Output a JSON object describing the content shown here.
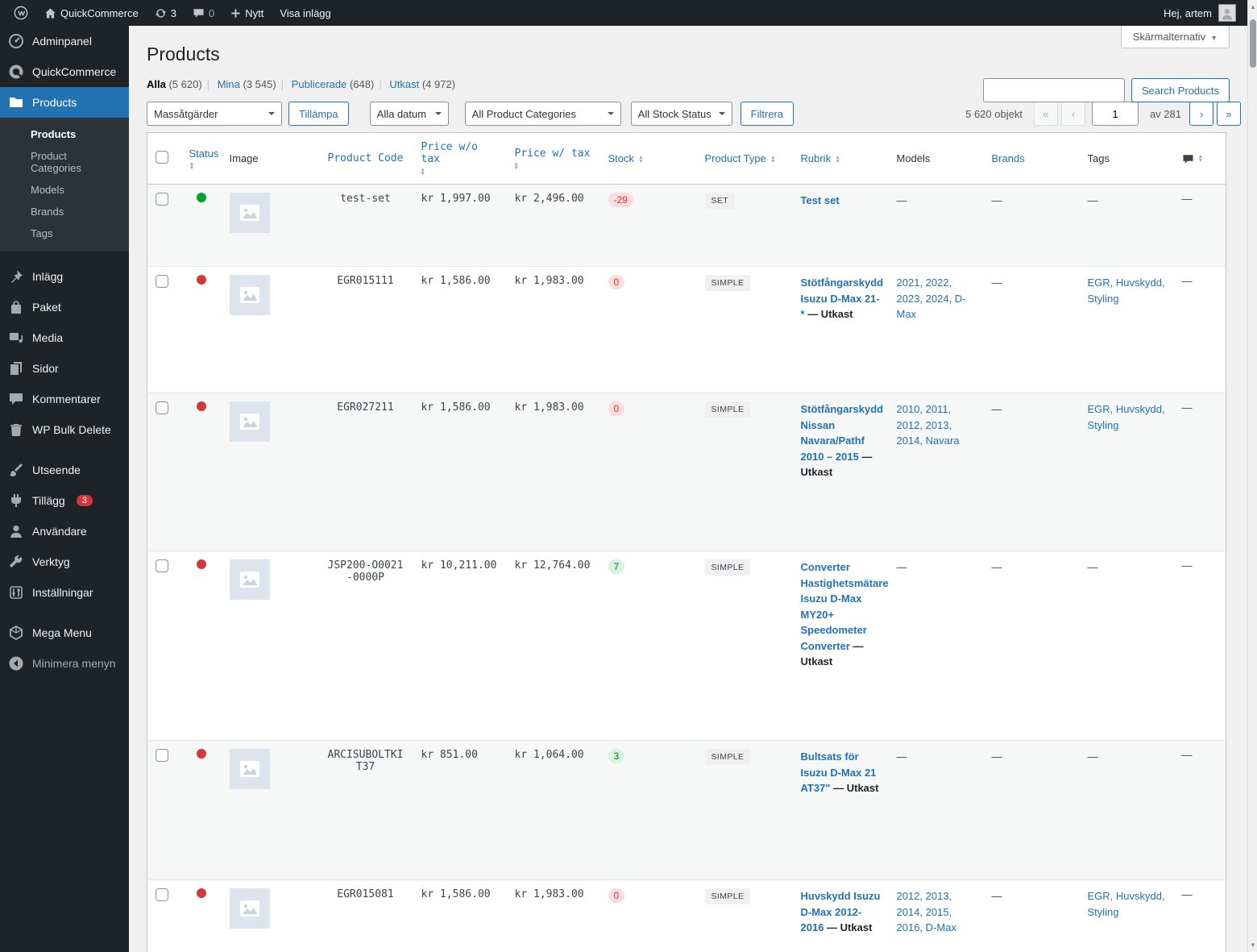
{
  "admin_bar": {
    "site_name": "QuickCommerce",
    "updates_count": "3",
    "comments_count": "0",
    "new_label": "Nytt",
    "view_posts_label": "Visa inlägg",
    "greeting": "Hej, artem"
  },
  "sidebar": {
    "menu": [
      {
        "label": "Adminpanel"
      },
      {
        "label": "QuickCommerce"
      },
      {
        "label": "Products"
      },
      {
        "label": "Inlägg"
      },
      {
        "label": "Paket"
      },
      {
        "label": "Media"
      },
      {
        "label": "Sidor"
      },
      {
        "label": "Kommentarer"
      },
      {
        "label": "WP Bulk Delete"
      },
      {
        "label": "Utseende"
      },
      {
        "label": "Tillägg",
        "badge": "3"
      },
      {
        "label": "Användare"
      },
      {
        "label": "Verktyg"
      },
      {
        "label": "Inställningar"
      },
      {
        "label": "Mega Menu"
      },
      {
        "label": "Minimera menyn"
      }
    ],
    "products_submenu": [
      {
        "label": "Products",
        "current": true
      },
      {
        "label": "Product Categories"
      },
      {
        "label": "Models"
      },
      {
        "label": "Brands"
      },
      {
        "label": "Tags"
      }
    ]
  },
  "page": {
    "title": "Products",
    "screen_options_label": "Skärmalternativ",
    "views": [
      {
        "label": "Alla",
        "count": "(5 620)",
        "current": true
      },
      {
        "label": "Mina",
        "count": "(3 545)",
        "current": false
      },
      {
        "label": "Publicerade",
        "count": "(648)",
        "current": false
      },
      {
        "label": "Utkast",
        "count": "(4 972)",
        "current": false
      }
    ],
    "search": {
      "value": "",
      "button_label": "Search Products"
    },
    "toolbar": {
      "bulk_action": "Massåtgärder",
      "apply_label": "Tillämpa",
      "date_filter": "Alla datum",
      "category_filter": "All Product Categories",
      "stock_filter": "All Stock Status",
      "filter_label": "Filtrera"
    },
    "pagination": {
      "items_label": "5 620 objekt",
      "first": "«",
      "prev": "‹",
      "current_page": "1",
      "total_label": "av 281",
      "next": "›",
      "last": "»"
    }
  },
  "table": {
    "columns": {
      "status": "Status",
      "image": "Image",
      "code": "Product Code",
      "price_ex": "Price w/o tax",
      "price_inc": "Price w/ tax",
      "stock": "Stock",
      "type": "Product Type",
      "title": "Rubrik",
      "models": "Models",
      "brands": "Brands",
      "tags": "Tags"
    },
    "rows": [
      {
        "status": "green",
        "code": "test-set",
        "price_ex": "kr 1,997.00",
        "price_inc": "kr 2,496.00",
        "stock": "-29",
        "stock_state": "neg",
        "type": "SET",
        "title": "Test set",
        "suffix": "",
        "models": "",
        "brands": "",
        "tags": "",
        "comments": ""
      },
      {
        "status": "red",
        "code": "EGR015111",
        "price_ex": "kr 1,586.00",
        "price_inc": "kr 1,983.00",
        "stock": "0",
        "stock_state": "neg",
        "type": "SIMPLE",
        "title": "Stötfångarskydd Isuzu D-Max 21-*",
        "suffix": "Utkast",
        "models": "2021, 2022, 2023, 2024, D-Max",
        "brands": "",
        "tags": "EGR, Huvskydd, Styling",
        "comments": ""
      },
      {
        "status": "red",
        "code": "EGR027211",
        "price_ex": "kr 1,586.00",
        "price_inc": "kr 1,983.00",
        "stock": "0",
        "stock_state": "neg",
        "type": "SIMPLE",
        "title": "Stötfångarskydd Nissan Navara/Pathf 2010 – 2015",
        "suffix": "Utkast",
        "models": "2010, 2011, 2012, 2013, 2014, Navara",
        "brands": "",
        "tags": "EGR, Huvskydd, Styling",
        "comments": ""
      },
      {
        "status": "red",
        "code": "JSP200-O0021-0000P",
        "price_ex": "kr 10,211.00",
        "price_inc": "kr 12,764.00",
        "stock": "7",
        "stock_state": "pos",
        "type": "SIMPLE",
        "title": "Converter Hastighetsmätare Isuzu D-Max MY20+ Speedometer Converter",
        "suffix": "Utkast",
        "models": "",
        "brands": "",
        "tags": "",
        "comments": ""
      },
      {
        "status": "red",
        "code": "ARCISUBOLTKIT37",
        "price_ex": "kr 851.00",
        "price_inc": "kr 1,064.00",
        "stock": "3",
        "stock_state": "pos",
        "type": "SIMPLE",
        "title": "Bultsats för Isuzu D-Max 21 AT37\"",
        "suffix": "Utkast",
        "models": "",
        "brands": "",
        "tags": "",
        "comments": ""
      },
      {
        "status": "red",
        "code": "EGR015081",
        "price_ex": "kr 1,586.00",
        "price_inc": "kr 1,983.00",
        "stock": "0",
        "stock_state": "neg",
        "type": "SIMPLE",
        "title": "Huvskydd Isuzu D-Max 2012-2016",
        "suffix": "Utkast",
        "models": "2012, 2013, 2014, 2015, 2016, D-Max",
        "brands": "",
        "tags": "EGR, Huvskydd, Styling",
        "comments": ""
      }
    ],
    "empty_value": "—"
  }
}
